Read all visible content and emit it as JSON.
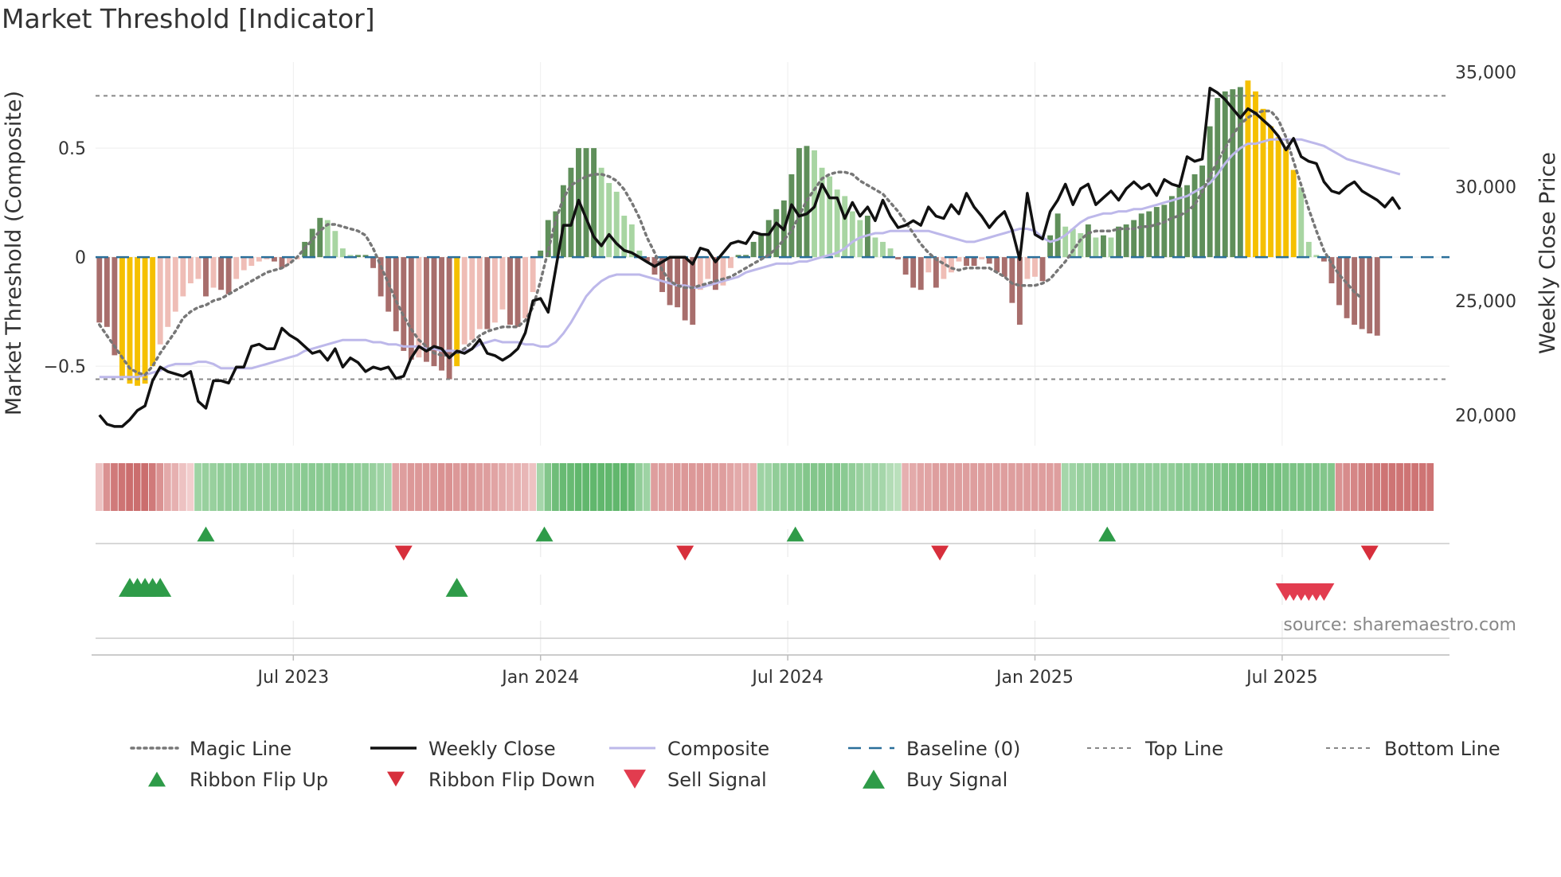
{
  "chart_data": {
    "type": "bar+line",
    "title": "Market Threshold [Indicator]",
    "ylabel_left": "Market Threshold (Composite)",
    "ylabel_right": "Weekly Close Price",
    "ylim_left": [
      -0.85,
      0.88
    ],
    "ylim_right": [
      18800,
      35300
    ],
    "left_ticks": [
      {
        "v": 0.5,
        "label": "0.5"
      },
      {
        "v": 0,
        "label": "0"
      },
      {
        "v": -0.5,
        "label": "−0.5"
      }
    ],
    "right_ticks": [
      {
        "v": 35000,
        "label": "35,000"
      },
      {
        "v": 30000,
        "label": "30,000"
      },
      {
        "v": 25000,
        "label": "25,000"
      },
      {
        "v": 20000,
        "label": "20,000"
      }
    ],
    "x_ticks": [
      {
        "i": 26,
        "label": "Jul 2023"
      },
      {
        "i": 58.5,
        "label": "Jan 2024"
      },
      {
        "i": 91,
        "label": "Jul 2024"
      },
      {
        "i": 123.5,
        "label": "Jan 2025"
      },
      {
        "i": 156,
        "label": "Jul 2025"
      }
    ],
    "top_line": 0.74,
    "bottom_line": -0.56,
    "baseline": 0,
    "weeks": 178,
    "hist_values": [
      -0.3,
      -0.32,
      -0.45,
      -0.55,
      -0.58,
      -0.59,
      -0.58,
      -0.5,
      -0.4,
      -0.32,
      -0.25,
      -0.18,
      -0.12,
      -0.1,
      -0.18,
      -0.14,
      -0.15,
      -0.17,
      -0.1,
      -0.06,
      -0.04,
      -0.02,
      -0.01,
      -0.02,
      -0.05,
      -0.03,
      -0.01,
      0.07,
      0.13,
      0.18,
      0.17,
      0.12,
      0.04,
      0.01,
      0.01,
      0.01,
      -0.05,
      -0.18,
      -0.25,
      -0.34,
      -0.43,
      -0.47,
      -0.46,
      -0.48,
      -0.5,
      -0.52,
      -0.56,
      -0.5,
      -0.4,
      -0.38,
      -0.33,
      -0.33,
      -0.3,
      -0.24,
      -0.31,
      -0.32,
      -0.28,
      -0.16,
      0.03,
      0.17,
      0.21,
      0.33,
      0.41,
      0.5,
      0.5,
      0.5,
      0.41,
      0.34,
      0.3,
      0.19,
      0.15,
      0.03,
      -0.02,
      -0.08,
      -0.16,
      -0.22,
      -0.23,
      -0.29,
      -0.31,
      -0.15,
      -0.1,
      -0.15,
      -0.13,
      -0.05,
      0.01,
      0.01,
      0.07,
      0.11,
      0.17,
      0.22,
      0.26,
      0.38,
      0.5,
      0.51,
      0.49,
      0.41,
      0.37,
      0.31,
      0.28,
      0.21,
      0.17,
      0.19,
      0.09,
      0.07,
      0.04,
      -0.01,
      -0.08,
      -0.14,
      -0.15,
      -0.07,
      -0.14,
      -0.1,
      -0.07,
      -0.02,
      -0.04,
      -0.04,
      -0.01,
      -0.03,
      -0.07,
      -0.09,
      -0.21,
      -0.31,
      -0.1,
      -0.09,
      -0.11,
      0.1,
      0.2,
      0.14,
      0.13,
      0.11,
      0.15,
      0.09,
      0.1,
      0.09,
      0.14,
      0.15,
      0.17,
      0.2,
      0.21,
      0.23,
      0.24,
      0.28,
      0.32,
      0.33,
      0.38,
      0.42,
      0.6,
      0.73,
      0.76,
      0.77,
      0.78,
      0.81,
      0.76,
      0.68,
      0.6,
      0.55,
      0.5,
      0.4,
      0.32,
      0.07,
      0.01,
      -0.02,
      -0.12,
      -0.22,
      -0.28,
      -0.31,
      -0.33,
      -0.35,
      -0.36
    ],
    "hist_highlight_weeks": [
      3,
      4,
      5,
      6,
      7,
      47,
      151,
      152,
      153,
      154,
      155,
      156,
      157
    ],
    "weekly_close": [
      20000,
      19600,
      19500,
      19500,
      19800,
      20200,
      20400,
      21500,
      22100,
      21900,
      21800,
      21700,
      21900,
      20600,
      20300,
      21500,
      21500,
      21400,
      22100,
      22100,
      23000,
      23100,
      22900,
      22900,
      23800,
      23500,
      23300,
      23000,
      22700,
      22800,
      22400,
      22900,
      22100,
      22500,
      22300,
      21900,
      22100,
      22000,
      22100,
      21600,
      21700,
      22500,
      23000,
      22800,
      23000,
      22900,
      22500,
      22800,
      22700,
      22900,
      23300,
      22700,
      22600,
      22400,
      22600,
      22900,
      23600,
      25000,
      25100,
      24500,
      26400,
      28300,
      28300,
      29400,
      28600,
      27800,
      27400,
      27900,
      27500,
      27200,
      27100,
      26900,
      26700,
      26500,
      26700,
      26900,
      26900,
      26900,
      26600,
      27300,
      27200,
      26700,
      27100,
      27500,
      27600,
      27500,
      28000,
      27900,
      27900,
      28400,
      28100,
      29200,
      28700,
      28800,
      29100,
      30100,
      29500,
      29500,
      28600,
      29300,
      28700,
      29100,
      28500,
      29400,
      28700,
      28200,
      28300,
      28500,
      28300,
      29100,
      28700,
      28600,
      29200,
      28800,
      29700,
      29100,
      28700,
      28200,
      28600,
      28900,
      28100,
      26800,
      29700,
      27900,
      27700,
      28900,
      29400,
      30100,
      29200,
      29900,
      30100,
      29200,
      29500,
      29800,
      29400,
      29900,
      30200,
      29900,
      30100,
      29600,
      30300,
      30100,
      30000,
      31300,
      31100,
      31200,
      34300,
      34100,
      33800,
      33400,
      33000,
      33400,
      33200,
      32900,
      32600,
      32200,
      31600,
      32100,
      31300,
      31100,
      31000,
      30200,
      29800,
      29700,
      30000,
      30200,
      29800,
      29600,
      29400,
      29100,
      29500,
      29000
    ],
    "weekly_close_start": 0,
    "composite": [
      -0.55,
      -0.55,
      -0.55,
      -0.55,
      -0.55,
      -0.55,
      -0.54,
      -0.53,
      -0.52,
      -0.5,
      -0.49,
      -0.49,
      -0.49,
      -0.48,
      -0.48,
      -0.49,
      -0.51,
      -0.51,
      -0.51,
      -0.51,
      -0.51,
      -0.5,
      -0.49,
      -0.48,
      -0.47,
      -0.46,
      -0.45,
      -0.43,
      -0.42,
      -0.41,
      -0.4,
      -0.39,
      -0.38,
      -0.38,
      -0.38,
      -0.38,
      -0.39,
      -0.39,
      -0.4,
      -0.4,
      -0.41,
      -0.41,
      -0.41,
      -0.42,
      -0.42,
      -0.43,
      -0.43,
      -0.43,
      -0.43,
      -0.42,
      -0.4,
      -0.39,
      -0.38,
      -0.39,
      -0.39,
      -0.39,
      -0.4,
      -0.4,
      -0.41,
      -0.41,
      -0.39,
      -0.35,
      -0.3,
      -0.24,
      -0.18,
      -0.14,
      -0.11,
      -0.09,
      -0.08,
      -0.08,
      -0.08,
      -0.08,
      -0.09,
      -0.1,
      -0.11,
      -0.12,
      -0.13,
      -0.13,
      -0.14,
      -0.14,
      -0.13,
      -0.12,
      -0.11,
      -0.1,
      -0.09,
      -0.07,
      -0.06,
      -0.05,
      -0.04,
      -0.03,
      -0.03,
      -0.03,
      -0.02,
      -0.02,
      -0.01,
      0.0,
      0.01,
      0.02,
      0.04,
      0.07,
      0.09,
      0.1,
      0.11,
      0.11,
      0.12,
      0.12,
      0.12,
      0.12,
      0.12,
      0.12,
      0.11,
      0.1,
      0.09,
      0.08,
      0.07,
      0.07,
      0.08,
      0.09,
      0.1,
      0.11,
      0.12,
      0.13,
      0.13,
      0.12,
      0.09,
      0.07,
      0.08,
      0.1,
      0.13,
      0.16,
      0.18,
      0.19,
      0.2,
      0.2,
      0.21,
      0.21,
      0.22,
      0.22,
      0.23,
      0.24,
      0.25,
      0.26,
      0.27,
      0.28,
      0.3,
      0.32,
      0.34,
      0.38,
      0.43,
      0.47,
      0.5,
      0.52,
      0.52,
      0.53,
      0.54,
      0.54,
      0.54,
      0.54,
      0.54,
      0.53,
      0.52,
      0.51,
      0.49,
      0.47,
      0.45,
      0.44,
      0.43,
      0.42,
      0.41,
      0.4,
      0.39,
      0.38
    ],
    "composite_start": 0,
    "magic_line": [
      -0.31,
      -0.36,
      -0.41,
      -0.46,
      -0.51,
      -0.53,
      -0.54,
      -0.5,
      -0.44,
      -0.39,
      -0.34,
      -0.28,
      -0.25,
      -0.23,
      -0.22,
      -0.2,
      -0.19,
      -0.17,
      -0.15,
      -0.13,
      -0.11,
      -0.09,
      -0.07,
      -0.06,
      -0.05,
      -0.03,
      0.0,
      0.04,
      0.08,
      0.12,
      0.15,
      0.15,
      0.14,
      0.13,
      0.12,
      0.1,
      0.04,
      -0.04,
      -0.12,
      -0.2,
      -0.27,
      -0.33,
      -0.38,
      -0.41,
      -0.44,
      -0.45,
      -0.45,
      -0.44,
      -0.42,
      -0.39,
      -0.36,
      -0.34,
      -0.33,
      -0.32,
      -0.32,
      -0.32,
      -0.29,
      -0.23,
      -0.11,
      0.03,
      0.17,
      0.27,
      0.33,
      0.35,
      0.37,
      0.38,
      0.38,
      0.37,
      0.35,
      0.31,
      0.25,
      0.18,
      0.09,
      0.02,
      -0.06,
      -0.11,
      -0.13,
      -0.14,
      -0.14,
      -0.13,
      -0.12,
      -0.11,
      -0.1,
      -0.09,
      -0.07,
      -0.05,
      -0.03,
      -0.01,
      0.01,
      0.04,
      0.08,
      0.12,
      0.19,
      0.26,
      0.31,
      0.36,
      0.38,
      0.39,
      0.39,
      0.38,
      0.35,
      0.33,
      0.31,
      0.29,
      0.25,
      0.21,
      0.16,
      0.11,
      0.06,
      0.02,
      -0.01,
      -0.03,
      -0.05,
      -0.06,
      -0.05,
      -0.05,
      -0.05,
      -0.05,
      -0.07,
      -0.09,
      -0.12,
      -0.13,
      -0.13,
      -0.13,
      -0.12,
      -0.1,
      -0.06,
      -0.02,
      0.03,
      0.08,
      0.11,
      0.12,
      0.12,
      0.12,
      0.13,
      0.13,
      0.13,
      0.14,
      0.14,
      0.15,
      0.16,
      0.18,
      0.19,
      0.21,
      0.24,
      0.3,
      0.37,
      0.44,
      0.5,
      0.56,
      0.61,
      0.64,
      0.66,
      0.67,
      0.67,
      0.63,
      0.55,
      0.44,
      0.33,
      0.22,
      0.12,
      0.03,
      -0.03,
      -0.08,
      -0.12,
      -0.16,
      -0.19
    ],
    "magic_start": 0,
    "ribbon_strength": [
      -0.15,
      -0.55,
      -0.75,
      -0.8,
      -0.85,
      -0.85,
      -0.85,
      -0.75,
      -0.55,
      -0.35,
      -0.3,
      -0.15,
      -0.05,
      0.35,
      0.4,
      0.4,
      0.45,
      0.45,
      0.45,
      0.45,
      0.45,
      0.45,
      0.45,
      0.45,
      0.45,
      0.45,
      0.45,
      0.5,
      0.5,
      0.5,
      0.5,
      0.5,
      0.5,
      0.5,
      0.45,
      0.45,
      0.4,
      0.35,
      0.3,
      -0.4,
      -0.45,
      -0.5,
      -0.5,
      -0.5,
      -0.5,
      -0.55,
      -0.55,
      -0.5,
      -0.5,
      -0.5,
      -0.45,
      -0.45,
      -0.4,
      -0.35,
      -0.3,
      -0.3,
      -0.25,
      -0.15,
      0.3,
      0.55,
      0.7,
      0.75,
      0.75,
      0.8,
      0.8,
      0.8,
      0.8,
      0.8,
      0.8,
      0.8,
      0.75,
      0.45,
      0.35,
      -0.45,
      -0.45,
      -0.45,
      -0.5,
      -0.5,
      -0.5,
      -0.5,
      -0.5,
      -0.45,
      -0.45,
      -0.4,
      -0.35,
      -0.35,
      -0.3,
      0.35,
      0.35,
      0.45,
      0.45,
      0.5,
      0.5,
      0.55,
      0.55,
      0.55,
      0.55,
      0.55,
      0.5,
      0.45,
      0.4,
      0.35,
      0.35,
      0.3,
      0.2,
      0.15,
      -0.3,
      -0.35,
      -0.4,
      -0.4,
      -0.45,
      -0.45,
      -0.45,
      -0.45,
      -0.45,
      -0.45,
      -0.45,
      -0.45,
      -0.45,
      -0.45,
      -0.45,
      -0.45,
      -0.45,
      -0.45,
      -0.45,
      -0.45,
      -0.45,
      0.3,
      0.35,
      0.4,
      0.4,
      0.45,
      0.45,
      0.45,
      0.45,
      0.45,
      0.45,
      0.45,
      0.45,
      0.45,
      0.45,
      0.45,
      0.5,
      0.5,
      0.5,
      0.5,
      0.55,
      0.55,
      0.6,
      0.6,
      0.65,
      0.65,
      0.65,
      0.65,
      0.65,
      0.65,
      0.6,
      0.6,
      0.6,
      0.6,
      0.6,
      0.55,
      0.55,
      -0.55,
      -0.6,
      -0.65,
      -0.7,
      -0.75,
      -0.75,
      -0.8,
      -0.8,
      -0.8,
      -0.8,
      -0.8,
      -0.8,
      -0.8
    ],
    "ribbon_flip_up_weeks": [
      14,
      58.5,
      91.5,
      132.5
    ],
    "ribbon_flip_down_weeks": [
      40,
      77,
      110.5,
      167
    ],
    "buy_signal_weeks": [
      4,
      5,
      6,
      7,
      8,
      47
    ],
    "sell_signal_weeks": [
      156,
      157,
      158,
      159,
      160,
      161
    ],
    "legend": [
      {
        "key": "magic",
        "label": "Magic Line"
      },
      {
        "key": "close",
        "label": "Weekly Close"
      },
      {
        "key": "composite",
        "label": "Composite"
      },
      {
        "key": "baseline",
        "label": "Baseline (0)"
      },
      {
        "key": "top",
        "label": "Top Line"
      },
      {
        "key": "bottom",
        "label": "Bottom Line"
      },
      {
        "key": "flip_up",
        "label": "Ribbon Flip Up"
      },
      {
        "key": "flip_down",
        "label": "Ribbon Flip Down"
      },
      {
        "key": "sell",
        "label": "Sell Signal"
      },
      {
        "key": "buy",
        "label": "Buy Signal"
      }
    ],
    "source": "source: sharemaestro.com",
    "colors": {
      "pos_light": "#a8d5a2",
      "pos_dark": "#5f8f5a",
      "neg_light": "#efbdb6",
      "neg_dark": "#a86e6c",
      "highlight": "#f5c000",
      "close": "#111111",
      "composite": "#bdb8ea",
      "magic": "#777777",
      "baseline": "#2a6f9a",
      "threshold": "#888888",
      "green_marker": "#2e9b48",
      "red_marker": "#d72f3c",
      "sell_marker": "#e23c4f"
    }
  }
}
